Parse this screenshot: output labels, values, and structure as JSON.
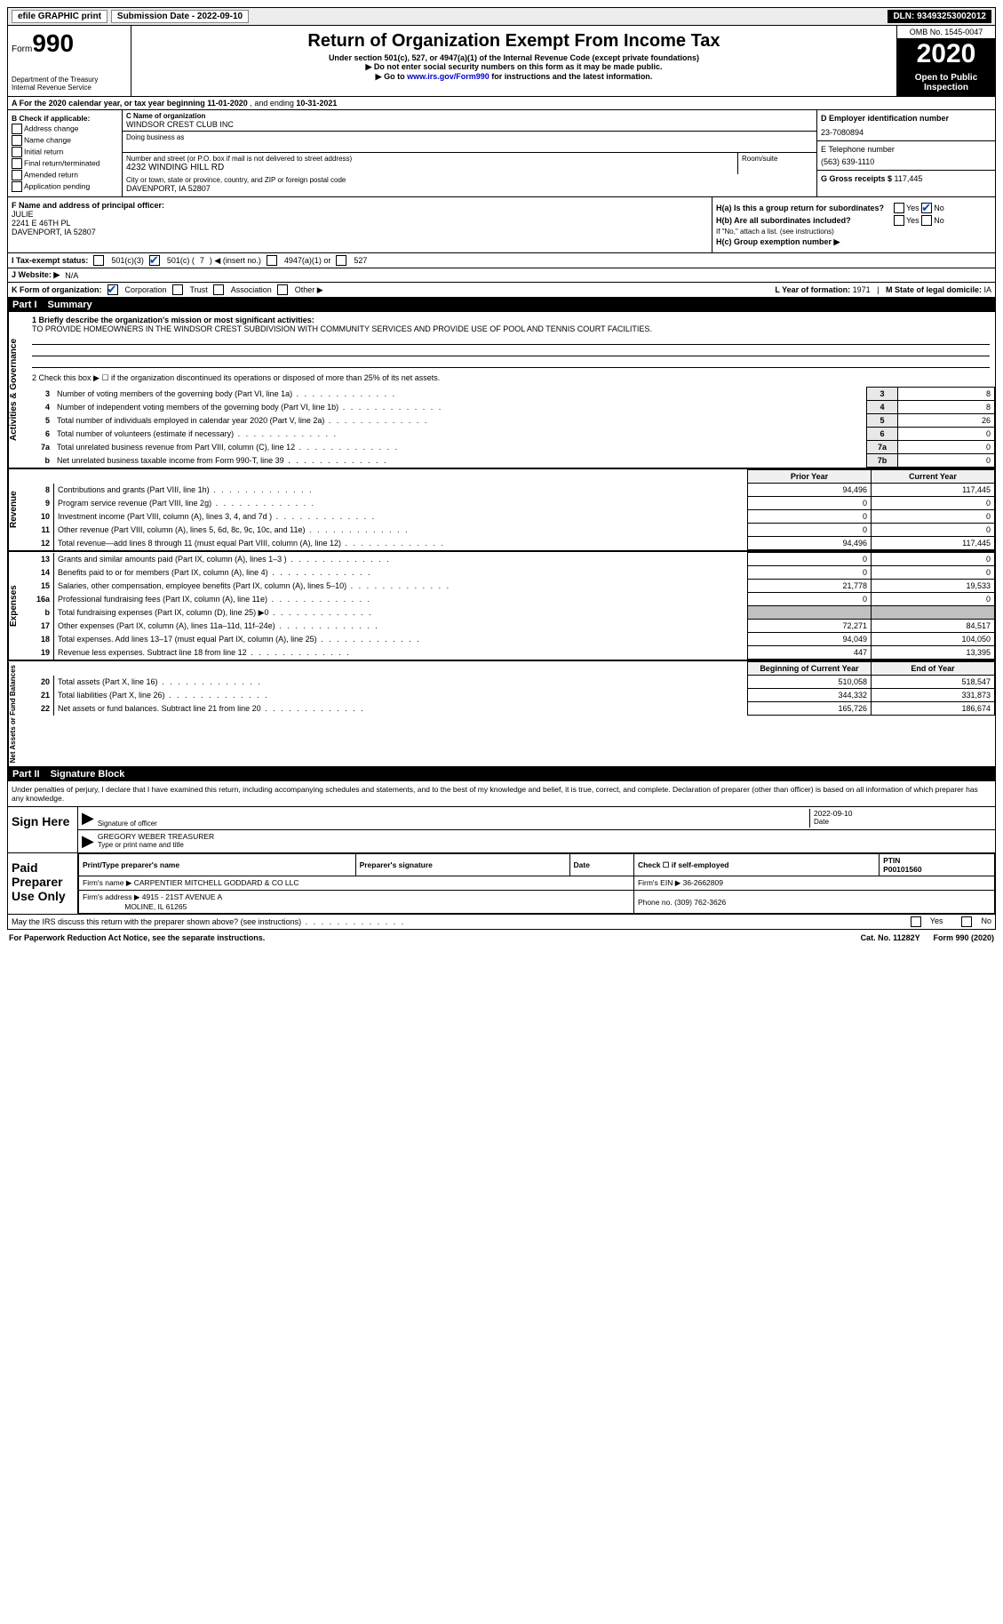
{
  "topbar": {
    "efile": "efile GRAPHIC print",
    "submission_label": "Submission Date - ",
    "submission_date": "2022-09-10",
    "dln_label": "DLN: ",
    "dln": "93493253002012"
  },
  "header": {
    "form_label": "Form",
    "form_num": "990",
    "dept": "Department of the Treasury\nInternal Revenue Service",
    "title": "Return of Organization Exempt From Income Tax",
    "sub1": "Under section 501(c), 527, or 4947(a)(1) of the Internal Revenue Code (except private foundations)",
    "sub2": "▶ Do not enter social security numbers on this form as it may be made public.",
    "sub3_pre": "▶ Go to ",
    "sub3_link": "www.irs.gov/Form990",
    "sub3_post": " for instructions and the latest information.",
    "omb": "OMB No. 1545-0047",
    "year": "2020",
    "open": "Open to Public Inspection"
  },
  "rowA": {
    "pre": "A For the 2020 calendar year, or tax year beginning ",
    "begin": "11-01-2020",
    "mid": " , and ending ",
    "end": "10-31-2021"
  },
  "colB": {
    "label": "B Check if applicable:",
    "opts": [
      "Address change",
      "Name change",
      "Initial return",
      "Final return/terminated",
      "Amended return",
      "Application pending"
    ]
  },
  "colC": {
    "name_label": "C Name of organization",
    "name": "WINDSOR CREST CLUB INC",
    "dba_label": "Doing business as",
    "street_label": "Number and street (or P.O. box if mail is not delivered to street address)",
    "room_label": "Room/suite",
    "street": "4232 WINDING HILL RD",
    "city_label": "City or town, state or province, country, and ZIP or foreign postal code",
    "city": "DAVENPORT, IA  52807"
  },
  "colD": {
    "ein_label": "D Employer identification number",
    "ein": "23-7080894",
    "phone_label": "E Telephone number",
    "phone": "(563) 639-1110",
    "gross_label": "G Gross receipts $ ",
    "gross": "117,445"
  },
  "colF": {
    "label": "F Name and address of principal officer:",
    "name": "JULIE",
    "addr1": "2241 E 46TH PL",
    "addr2": "DAVENPORT, IA  52807"
  },
  "colH": {
    "ha_label": "H(a)  Is this a group return for subordinates?",
    "hb_label": "H(b)  Are all subordinates included?",
    "hb_note": "If \"No,\" attach a list. (see instructions)",
    "hc_label": "H(c)  Group exemption number ▶",
    "yes": "Yes",
    "no": "No"
  },
  "rowI": {
    "label": "I   Tax-exempt status:",
    "o1": "501(c)(3)",
    "o2_pre": "501(c) ( ",
    "o2_num": "7",
    "o2_post": " ) ◀ (insert no.)",
    "o3": "4947(a)(1) or",
    "o4": "527"
  },
  "rowJ": {
    "label": "J   Website: ▶",
    "val": "N/A"
  },
  "rowK": {
    "label": "K Form of organization:",
    "o1": "Corporation",
    "o2": "Trust",
    "o3": "Association",
    "o4": "Other ▶",
    "l_label": "L Year of formation: ",
    "l_val": "1971",
    "m_label": "M State of legal domicile: ",
    "m_val": "IA"
  },
  "part1": {
    "tab": "Part I",
    "title": "Summary",
    "q1_label": "1  Briefly describe the organization's mission or most significant activities:",
    "q1_val": "TO PROVIDE HOMEOWNERS IN THE WINDSOR CREST SUBDIVISION WITH COMMUNITY SERVICES AND PROVIDE USE OF POOL AND TENNIS COURT FACILITIES.",
    "q2": "2    Check this box ▶ ☐  if the organization discontinued its operations or disposed of more than 25% of its net assets.",
    "vlabel_gov": "Activities & Governance",
    "lines_gov": [
      {
        "n": "3",
        "desc": "Number of voting members of the governing body (Part VI, line 1a)",
        "box": "3",
        "val": "8"
      },
      {
        "n": "4",
        "desc": "Number of independent voting members of the governing body (Part VI, line 1b)",
        "box": "4",
        "val": "8"
      },
      {
        "n": "5",
        "desc": "Total number of individuals employed in calendar year 2020 (Part V, line 2a)",
        "box": "5",
        "val": "26"
      },
      {
        "n": "6",
        "desc": "Total number of volunteers (estimate if necessary)",
        "box": "6",
        "val": "0"
      },
      {
        "n": "7a",
        "desc": "Total unrelated business revenue from Part VIII, column (C), line 12",
        "box": "7a",
        "val": "0"
      },
      {
        "n": "b",
        "desc": "Net unrelated business taxable income from Form 990-T, line 39",
        "box": "7b",
        "val": "0"
      }
    ],
    "col_prior": "Prior Year",
    "col_current": "Current Year",
    "vlabel_rev": "Revenue",
    "lines_rev": [
      {
        "n": "8",
        "desc": "Contributions and grants (Part VIII, line 1h)",
        "prior": "94,496",
        "curr": "117,445"
      },
      {
        "n": "9",
        "desc": "Program service revenue (Part VIII, line 2g)",
        "prior": "0",
        "curr": "0"
      },
      {
        "n": "10",
        "desc": "Investment income (Part VIII, column (A), lines 3, 4, and 7d )",
        "prior": "0",
        "curr": "0"
      },
      {
        "n": "11",
        "desc": "Other revenue (Part VIII, column (A), lines 5, 6d, 8c, 9c, 10c, and 11e)",
        "prior": "0",
        "curr": "0"
      },
      {
        "n": "12",
        "desc": "Total revenue—add lines 8 through 11 (must equal Part VIII, column (A), line 12)",
        "prior": "94,496",
        "curr": "117,445"
      }
    ],
    "vlabel_exp": "Expenses",
    "lines_exp": [
      {
        "n": "13",
        "desc": "Grants and similar amounts paid (Part IX, column (A), lines 1–3 )",
        "prior": "0",
        "curr": "0"
      },
      {
        "n": "14",
        "desc": "Benefits paid to or for members (Part IX, column (A), line 4)",
        "prior": "0",
        "curr": "0"
      },
      {
        "n": "15",
        "desc": "Salaries, other compensation, employee benefits (Part IX, column (A), lines 5–10)",
        "prior": "21,778",
        "curr": "19,533"
      },
      {
        "n": "16a",
        "desc": "Professional fundraising fees (Part IX, column (A), line 11e)",
        "prior": "0",
        "curr": "0"
      },
      {
        "n": "b",
        "desc": "Total fundraising expenses (Part IX, column (D), line 25) ▶0",
        "prior": "",
        "curr": "",
        "shade": true
      },
      {
        "n": "17",
        "desc": "Other expenses (Part IX, column (A), lines 11a–11d, 11f–24e)",
        "prior": "72,271",
        "curr": "84,517"
      },
      {
        "n": "18",
        "desc": "Total expenses. Add lines 13–17 (must equal Part IX, column (A), line 25)",
        "prior": "94,049",
        "curr": "104,050"
      },
      {
        "n": "19",
        "desc": "Revenue less expenses. Subtract line 18 from line 12",
        "prior": "447",
        "curr": "13,395"
      }
    ],
    "col_begin": "Beginning of Current Year",
    "col_end": "End of Year",
    "vlabel_net": "Net Assets or Fund Balances",
    "lines_net": [
      {
        "n": "20",
        "desc": "Total assets (Part X, line 16)",
        "prior": "510,058",
        "curr": "518,547"
      },
      {
        "n": "21",
        "desc": "Total liabilities (Part X, line 26)",
        "prior": "344,332",
        "curr": "331,873"
      },
      {
        "n": "22",
        "desc": "Net assets or fund balances. Subtract line 21 from line 20",
        "prior": "165,726",
        "curr": "186,674"
      }
    ]
  },
  "part2": {
    "tab": "Part II",
    "title": "Signature Block",
    "decl": "Under penalties of perjury, I declare that I have examined this return, including accompanying schedules and statements, and to the best of my knowledge and belief, it is true, correct, and complete. Declaration of preparer (other than officer) is based on all information of which preparer has any knowledge.",
    "sign_here": "Sign Here",
    "sig_officer": "Signature of officer",
    "sig_date_label": "Date",
    "sig_date": "2022-09-10",
    "sig_name": "GREGORY WEBER  TREASURER",
    "sig_name_label": "Type or print name and title",
    "paid": "Paid Preparer Use Only",
    "prep_name_label": "Print/Type preparer's name",
    "prep_sig_label": "Preparer's signature",
    "prep_date_label": "Date",
    "prep_check_label": "Check ☐ if self-employed",
    "ptin_label": "PTIN",
    "ptin": "P00101560",
    "firm_name_label": "Firm's name    ▶ ",
    "firm_name": "CARPENTIER MITCHELL GODDARD & CO LLC",
    "firm_ein_label": "Firm's EIN ▶ ",
    "firm_ein": "36-2662809",
    "firm_addr_label": "Firm's address ▶ ",
    "firm_addr1": "4915 - 21ST AVENUE A",
    "firm_addr2": "MOLINE, IL  61265",
    "firm_phone_label": "Phone no. ",
    "firm_phone": "(309) 762-3626",
    "discuss": "May the IRS discuss this return with the preparer shown above? (see instructions)",
    "yes": "Yes",
    "no": "No"
  },
  "footer": {
    "pra": "For Paperwork Reduction Act Notice, see the separate instructions.",
    "cat": "Cat. No. 11282Y",
    "form": "Form 990 (2020)"
  }
}
